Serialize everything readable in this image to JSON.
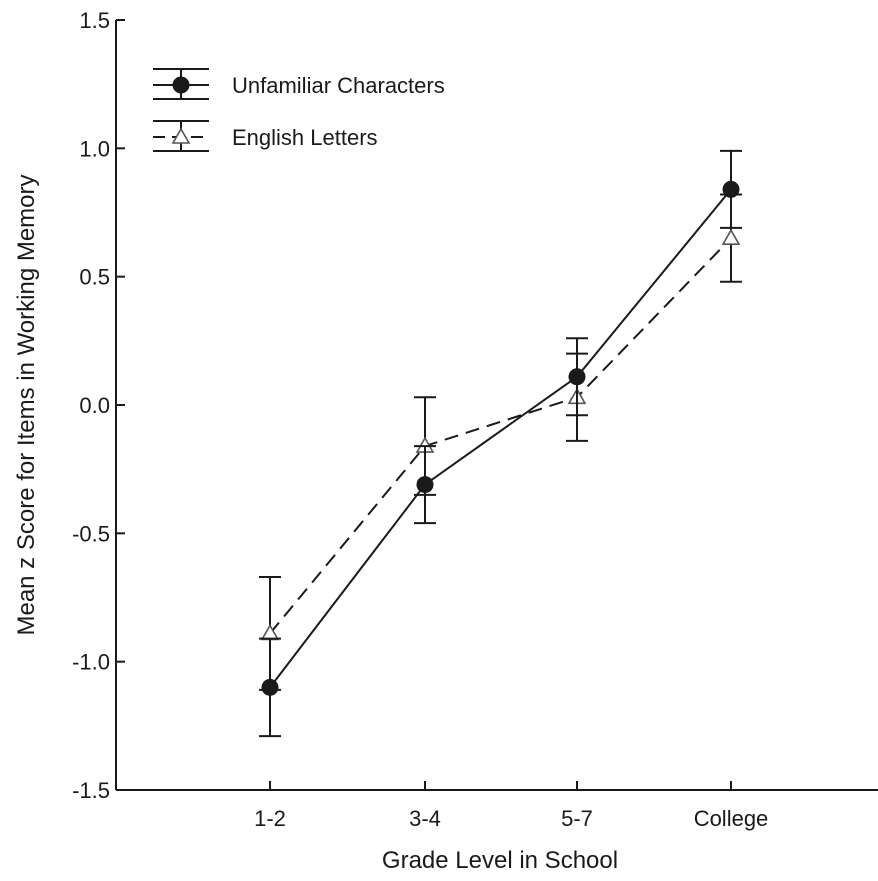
{
  "chart_data": {
    "type": "line",
    "title": "",
    "xlabel": "Grade Level in School",
    "ylabel": "Mean z Score for Items in Working Memory",
    "categories": [
      "1-2",
      "3-4",
      "5-7",
      "College"
    ],
    "ylim": [
      -1.5,
      1.5
    ],
    "yticks": [
      -1.5,
      -1.0,
      -0.5,
      0.0,
      0.5,
      1.0,
      1.5
    ],
    "ytick_labels": [
      "-1.5",
      "-1.0",
      "-0.5",
      "0.0",
      "0.5",
      "1.0",
      "1.5"
    ],
    "grid": false,
    "legend_position": "top-left",
    "series": [
      {
        "name": "Unfamiliar Characters",
        "marker": "filled-circle",
        "line_style": "solid",
        "color": "#1a1a1a",
        "values": [
          -1.1,
          -0.31,
          0.11,
          0.84
        ],
        "error_low": [
          -1.29,
          -0.46,
          -0.04,
          0.69
        ],
        "error_high": [
          -0.91,
          -0.16,
          0.26,
          0.99
        ]
      },
      {
        "name": "English Letters",
        "marker": "open-triangle",
        "line_style": "dashed",
        "color": "#1a1a1a",
        "values": [
          -0.89,
          -0.16,
          0.03,
          0.65
        ],
        "error_low": [
          -1.11,
          -0.35,
          -0.14,
          0.48
        ],
        "error_high": [
          -0.67,
          0.03,
          0.2,
          0.82
        ]
      }
    ]
  }
}
